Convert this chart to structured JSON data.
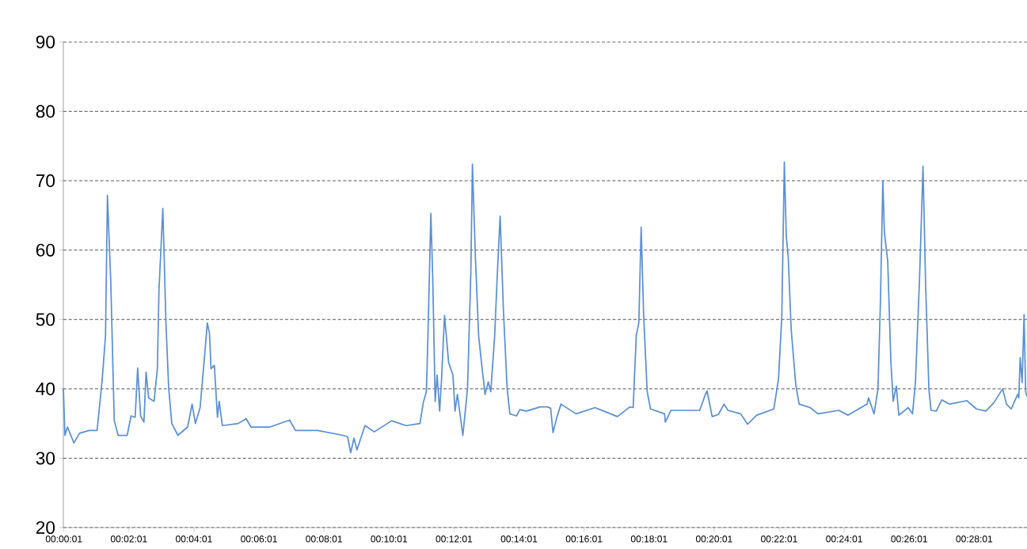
{
  "chart_data": {
    "type": "line",
    "color": "#5a8fd6",
    "grid": "y",
    "xlim": [
      0,
      0.494
    ],
    "ylim": [
      20,
      90
    ],
    "yticks": [
      20,
      30,
      40,
      50,
      60,
      70,
      80,
      90
    ],
    "xticks": [
      {
        "value": 0.00028,
        "label": "00:00:01"
      },
      {
        "value": 0.03361,
        "label": "00:02:01"
      },
      {
        "value": 0.06694,
        "label": "00:04:01"
      },
      {
        "value": 0.10028,
        "label": "00:06:01"
      },
      {
        "value": 0.13361,
        "label": "00:08:01"
      },
      {
        "value": 0.16694,
        "label": "00:10:01"
      },
      {
        "value": 0.20028,
        "label": "00:12:01"
      },
      {
        "value": 0.23361,
        "label": "00:14:01"
      },
      {
        "value": 0.26694,
        "label": "00:16:01"
      },
      {
        "value": 0.30028,
        "label": "00:18:01"
      },
      {
        "value": 0.33361,
        "label": "00:20:01"
      },
      {
        "value": 0.36694,
        "label": "00:22:01"
      },
      {
        "value": 0.40028,
        "label": "00:24:01"
      },
      {
        "value": 0.43361,
        "label": "00:26:01"
      },
      {
        "value": 0.46694,
        "label": "00:28:01"
      }
    ],
    "x": [
      0,
      0.0008,
      0.0021,
      0.0054,
      0.0083,
      0.0132,
      0.0173,
      0.0198,
      0.0216,
      0.0226,
      0.0243,
      0.0261,
      0.0281,
      0.0327,
      0.0347,
      0.0368,
      0.0381,
      0.0396,
      0.0413,
      0.0424,
      0.0437,
      0.0465,
      0.0482,
      0.049,
      0.051,
      0.0526,
      0.054,
      0.0556,
      0.0587,
      0.0637,
      0.066,
      0.0677,
      0.0701,
      0.0721,
      0.0738,
      0.0749,
      0.0757,
      0.0774,
      0.079,
      0.0799,
      0.0815,
      0.0896,
      0.0937,
      0.0962,
      0.1059,
      0.116,
      0.119,
      0.1304,
      0.1432,
      0.1457,
      0.1473,
      0.149,
      0.1505,
      0.1546,
      0.1594,
      0.1683,
      0.1757,
      0.1828,
      0.1845,
      0.1861,
      0.1869,
      0.1884,
      0.1894,
      0.1906,
      0.1916,
      0.1929,
      0.1939,
      0.1954,
      0.1975,
      0.1997,
      0.2008,
      0.202,
      0.2048,
      0.2072,
      0.2089,
      0.2097,
      0.2112,
      0.2129,
      0.2145,
      0.2162,
      0.2178,
      0.2191,
      0.2211,
      0.2223,
      0.2239,
      0.2256,
      0.2275,
      0.2289,
      0.2323,
      0.234,
      0.2373,
      0.2445,
      0.2482,
      0.2498,
      0.251,
      0.2531,
      0.2551,
      0.2628,
      0.2726,
      0.284,
      0.2904,
      0.2921,
      0.2937,
      0.295,
      0.2962,
      0.2975,
      0.2993,
      0.301,
      0.3082,
      0.3086,
      0.3115,
      0.3262,
      0.329,
      0.33,
      0.3326,
      0.3358,
      0.3387,
      0.3407,
      0.3472,
      0.3508,
      0.3554,
      0.3642,
      0.3666,
      0.3683,
      0.3696,
      0.3706,
      0.3716,
      0.3731,
      0.3755,
      0.3772,
      0.3828,
      0.3869,
      0.3975,
      0.4023,
      0.412,
      0.4128,
      0.4156,
      0.4176,
      0.4189,
      0.4201,
      0.4209,
      0.4226,
      0.4242,
      0.4254,
      0.427,
      0.4283,
      0.4331,
      0.4353,
      0.4368,
      0.4389,
      0.4407,
      0.442,
      0.4437,
      0.4448,
      0.4475,
      0.4503,
      0.4542,
      0.4632,
      0.4681,
      0.4729,
      0.477,
      0.4815,
      0.4835,
      0.4859,
      0.4892,
      0.4898,
      0.4905,
      0.4915,
      0.4925,
      0.4933,
      0.494
    ],
    "values": [
      40.1,
      33.3,
      34.5,
      32.2,
      33.6,
      34,
      34,
      41,
      47.6,
      67.9,
      55.5,
      35.4,
      33.3,
      33.3,
      36.1,
      35.9,
      43,
      36.1,
      35.2,
      42.4,
      38.7,
      38.2,
      42.9,
      54.1,
      66,
      49.4,
      40.1,
      35,
      33.3,
      34.5,
      37.8,
      35,
      37.3,
      43.8,
      49.5,
      48,
      42.9,
      43.4,
      35.9,
      38.2,
      34.7,
      35,
      35.7,
      34.5,
      34.5,
      35.5,
      34,
      34,
      33.3,
      33.1,
      30.8,
      32.9,
      31.2,
      34.7,
      33.8,
      35.4,
      34.7,
      35,
      38,
      39.6,
      47.6,
      65.3,
      55.5,
      38.2,
      42,
      36.8,
      41.5,
      50.6,
      43.8,
      42,
      36.8,
      39.2,
      33.3,
      40.1,
      56.9,
      72.4,
      59.2,
      47.6,
      43.4,
      39.2,
      41,
      39.6,
      47.6,
      55.5,
      64.9,
      51.3,
      40.1,
      36.4,
      36.1,
      37,
      36.8,
      37.4,
      37.4,
      37.2,
      33.7,
      36,
      37.8,
      36.4,
      37.3,
      36,
      37.4,
      37.3,
      47.7,
      49.5,
      63.3,
      50.4,
      39.6,
      37.1,
      36.4,
      35.2,
      36.9,
      36.9,
      39.1,
      39.7,
      36,
      36.3,
      37.8,
      36.9,
      36.4,
      34.9,
      36.2,
      37.1,
      41.4,
      50.4,
      72.7,
      62,
      59,
      48.6,
      40.5,
      37.8,
      37.3,
      36.4,
      36.9,
      36.2,
      37.8,
      38.7,
      36.4,
      40,
      53,
      70,
      62.5,
      58.4,
      44,
      38.2,
      40.4,
      36.2,
      37.3,
      36.4,
      40.9,
      55.8,
      72.1,
      55.3,
      40,
      36.9,
      36.8,
      38.4,
      37.8,
      38.3,
      37.1,
      36.8,
      38,
      40,
      37.8,
      37.1,
      39.2,
      38.7,
      44.5,
      40.9,
      50.7,
      39.6,
      38.9
    ]
  }
}
